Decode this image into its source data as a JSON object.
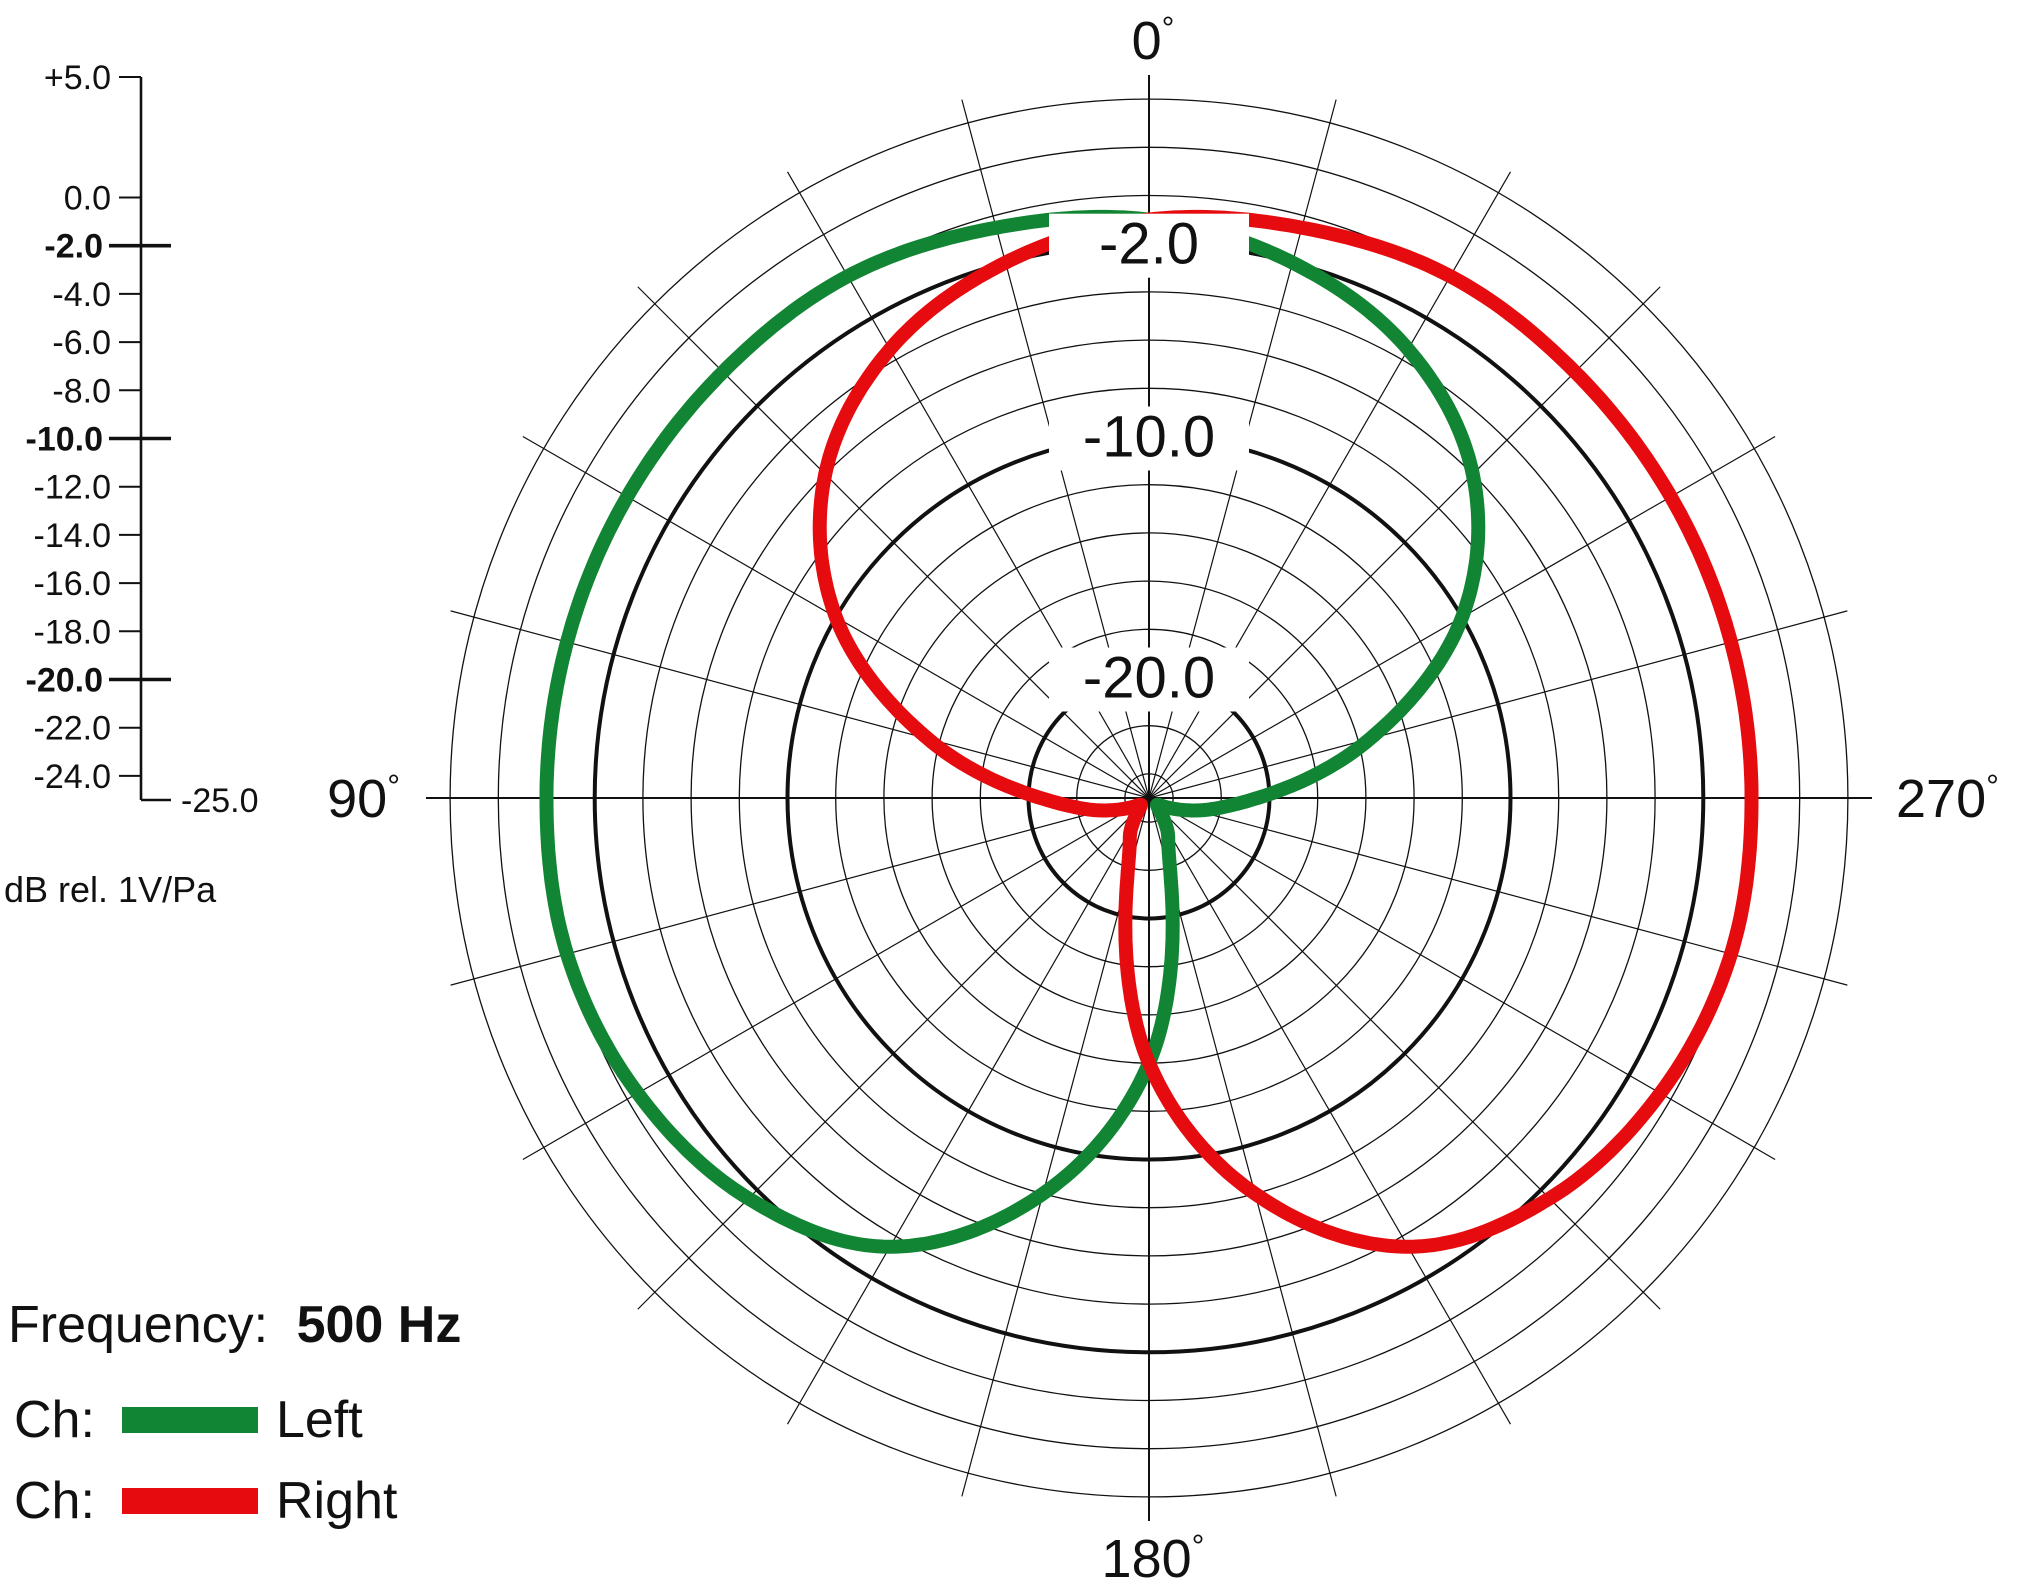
{
  "chart_data": {
    "type": "polar",
    "radial_unit": "dB rel. 1V/Pa",
    "radial_range": [
      -25.0,
      5.0
    ],
    "scale_labels": [
      "+5.0",
      "0.0",
      "-2.0",
      "-4.0",
      "-6.0",
      "-8.0",
      "-10.0",
      "-12.0",
      "-14.0",
      "-16.0",
      "-18.0",
      "-20.0",
      "-22.0",
      "-24.0",
      "-25.0"
    ],
    "scale_values": [
      5,
      0,
      -2,
      -4,
      -6,
      -8,
      -10,
      -12,
      -14,
      -16,
      -18,
      -20,
      -22,
      -24,
      -25
    ],
    "major_scale_values": [
      -2,
      -10,
      -20
    ],
    "ring_labels": [
      {
        "text": "-2.0",
        "value": -2
      },
      {
        "text": "-10.0",
        "value": -10
      },
      {
        "text": "-20.0",
        "value": -20
      }
    ],
    "angle_labels": [
      {
        "text": "0",
        "deg": 0
      },
      {
        "text": "90",
        "deg": 90
      },
      {
        "text": "180",
        "deg": 180
      },
      {
        "text": "270",
        "deg": 270
      }
    ],
    "degree_symbol": "°",
    "spoke_step_deg": 15,
    "grid_step_db": 2,
    "series": [
      {
        "name": "Left",
        "color": "#118534",
        "angles": [
          0,
          15,
          30,
          45,
          60,
          75,
          90,
          105,
          120,
          135,
          150,
          165,
          180,
          195,
          210,
          225,
          240,
          255,
          270,
          285,
          300,
          315,
          330,
          345
        ],
        "values": [
          -1.0,
          -0.5,
          0.0,
          0.0,
          0.0,
          0.0,
          0.0,
          0.0,
          -0.5,
          -1.5,
          -3.5,
          -8.0,
          -14.0,
          -21.5,
          -23.5,
          -24.5,
          -24.3,
          -23.0,
          -20.5,
          -15.5,
          -10.0,
          -6.0,
          -3.5,
          -2.0
        ]
      },
      {
        "name": "Right",
        "color": "#e50b0e",
        "angles": [
          0,
          15,
          30,
          45,
          60,
          75,
          90,
          105,
          120,
          135,
          150,
          165,
          180,
          195,
          210,
          225,
          240,
          255,
          270,
          285,
          300,
          315,
          330,
          345
        ],
        "values": [
          -1.0,
          -2.0,
          -3.5,
          -6.0,
          -10.0,
          -15.5,
          -20.5,
          -23.0,
          -24.3,
          -24.5,
          -23.5,
          -21.5,
          -14.0,
          -8.0,
          -3.5,
          -1.5,
          -0.5,
          0.0,
          0.0,
          0.0,
          0.0,
          0.0,
          0.0,
          -0.5
        ]
      }
    ]
  },
  "legend": {
    "frequency_label": "Frequency:",
    "frequency_value": "500 Hz",
    "channel_prefix": "Ch:",
    "left_label": "Left",
    "right_label": "Right",
    "left_color": "#118534",
    "right_color": "#e50b0e"
  }
}
